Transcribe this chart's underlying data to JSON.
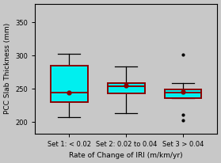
{
  "sets": [
    "Set 1: < 0.02",
    "Set 2: 0.02 to 0.04",
    "Set 3 > 0.04"
  ],
  "medians": [
    244,
    254,
    245
  ],
  "q1": [
    230,
    243,
    236
  ],
  "q3": [
    285,
    259,
    249
  ],
  "whisker_low": [
    208,
    213,
    236
  ],
  "whisker_high": [
    303,
    284,
    259
  ],
  "outliers": {
    "0": [],
    "1": [],
    "2": [
      203,
      211,
      302
    ]
  },
  "means": [
    244,
    255,
    246
  ],
  "ylim": [
    183,
    378
  ],
  "yticks": [
    200,
    250,
    300,
    350
  ],
  "box_color": "#00EFEF",
  "box_edge_color": "#8B0000",
  "median_color": "#8B0000",
  "mean_marker_color": "#8B0000",
  "whisker_color": "black",
  "outlier_color": "black",
  "xlabel": "Rate of Change of IRI (m/km/yr)",
  "ylabel": "PCC Slab Thickness (mm)",
  "background_color": "#C8C8C8",
  "plot_bg_color": "#C8C8C8",
  "label_fontsize": 6.5,
  "tick_fontsize": 6.0,
  "box_width": 0.65,
  "cap_ratio": 0.6
}
